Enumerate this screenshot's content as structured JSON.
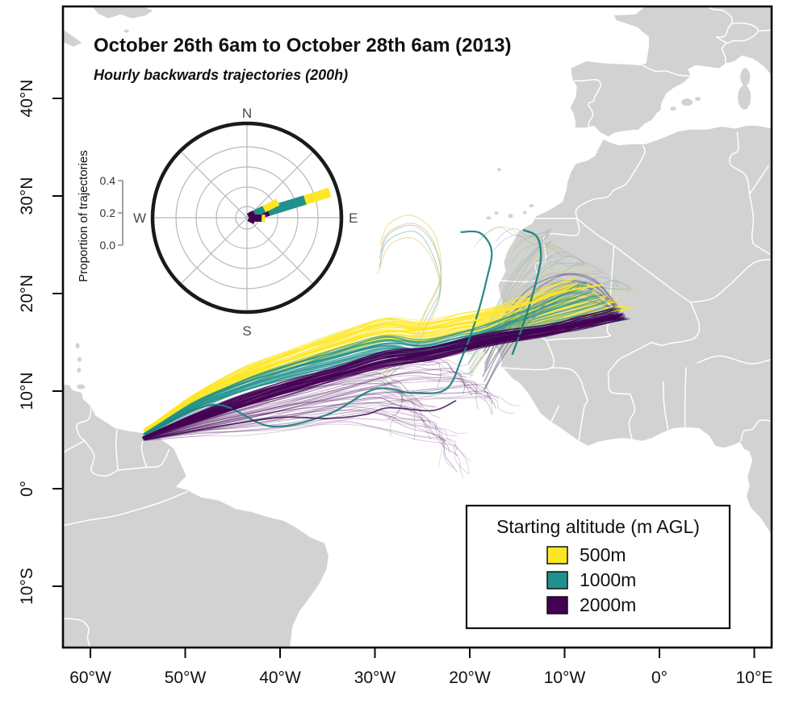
{
  "title": "October 26th 6am to October 28th 6am (2013)",
  "subtitle": "Hourly backwards trajectories (200h)",
  "colors": {
    "land": "#d2d2d2",
    "ocean": "#ffffff",
    "country_border": "#ffffff",
    "frame": "#0a0a0a",
    "alt_500m": "#FDE725",
    "alt_1000m": "#21918C",
    "alt_2000m": "#440154"
  },
  "axes": {
    "lon_ticks": [
      {
        "label": "60°W",
        "lon": -60
      },
      {
        "label": "50°W",
        "lon": -50
      },
      {
        "label": "40°W",
        "lon": -40
      },
      {
        "label": "30°W",
        "lon": -30
      },
      {
        "label": "20°W",
        "lon": -20
      },
      {
        "label": "10°W",
        "lon": -10
      },
      {
        "label": "0°",
        "lon": 0
      },
      {
        "label": "10°E",
        "lon": 10
      }
    ],
    "lat_ticks": [
      {
        "label": "40°N",
        "lat": 40
      },
      {
        "label": "30°N",
        "lat": 30
      },
      {
        "label": "20°N",
        "lat": 20
      },
      {
        "label": "10°N",
        "lat": 10
      },
      {
        "label": "0°",
        "lat": 0
      },
      {
        "label": "10°S",
        "lat": -10
      }
    ]
  },
  "inset": {
    "axis_label": "Proportion of trajectories",
    "compass": {
      "north": "N",
      "east": "E",
      "south": "S",
      "west": "W"
    },
    "scale_ticks": [
      {
        "label": "0.0",
        "value": 0.0
      },
      {
        "label": "0.2",
        "value": 0.2
      },
      {
        "label": "0.4",
        "value": 0.4
      }
    ]
  },
  "legend": {
    "title": "Starting altitude (m AGL)",
    "items": [
      {
        "label": "500m",
        "color": "#FDE725"
      },
      {
        "label": "1000m",
        "color": "#21918C"
      },
      {
        "label": "2000m",
        "color": "#440154"
      }
    ]
  },
  "chart_data": {
    "type": "trajectory_map",
    "map_extent": {
      "lon": [
        -62.9,
        11.9
      ],
      "lat": [
        -16.3,
        49.4
      ]
    },
    "trajectory_origin": {
      "lon": -54.3,
      "lat": 5.4
    },
    "rose": {
      "type": "polar_rose",
      "units": "proportion of trajectories",
      "rlim": [
        0,
        0.4
      ],
      "bins": [
        {
          "dir_deg": 73,
          "thickness": 12,
          "stacks": [
            {
              "altitude": "2000m",
              "color": "#440154",
              "r0": 0.02,
              "r1": 0.13
            },
            {
              "altitude": "1000m",
              "color": "#21918C",
              "r0": 0.13,
              "r1": 0.35
            },
            {
              "altitude": "500m",
              "color": "#FDE725",
              "r0": 0.35,
              "r1": 0.5
            }
          ]
        },
        {
          "dir_deg": 63,
          "thickness": 9,
          "stacks": [
            {
              "altitude": "2000m",
              "color": "#440154",
              "r0": 0.01,
              "r1": 0.05
            },
            {
              "altitude": "1000m",
              "color": "#21918C",
              "r0": 0.05,
              "r1": 0.11
            },
            {
              "altitude": "500m",
              "color": "#FDE725",
              "r0": 0.11,
              "r1": 0.2
            }
          ]
        },
        {
          "dir_deg": 92,
          "thickness": 9,
          "stacks": [
            {
              "altitude": "2000m",
              "color": "#440154",
              "r0": 0.015,
              "r1": 0.085
            },
            {
              "altitude": "500m",
              "color": "#FDE725",
              "r0": 0.085,
              "r1": 0.105
            }
          ]
        },
        {
          "dir_deg": 116,
          "thickness": 7,
          "stacks": [
            {
              "altitude": "2000m",
              "color": "#440154",
              "r0": 0.01,
              "r1": 0.05
            }
          ]
        }
      ]
    },
    "bundles": [
      {
        "name": "faint-purple-south",
        "altitude": "2000m",
        "color": "#440154",
        "count": 30,
        "width": [
          0.7,
          1.1
        ],
        "opacity": [
          0.16,
          0.34
        ],
        "center": [
          [
            -54.3,
            5.05
          ],
          [
            -49,
            6.2
          ],
          [
            -44,
            7.1
          ],
          [
            -39,
            8.0
          ],
          [
            -34,
            8.8
          ],
          [
            -30,
            9.2
          ]
        ],
        "spread": [
          0.12,
          0.7,
          1.4,
          2.0,
          2.4,
          2.6
        ],
        "fan": [
          [
            -22,
            4.8
          ],
          [
            -28.5,
            11.3
          ]
        ],
        "tail": {
          "steps": 4,
          "len": 1.0,
          "angle": -55,
          "jitter": 55
        }
      },
      {
        "name": "faint-purple-mid",
        "altitude": "2000m",
        "color": "#440154",
        "count": 24,
        "width": [
          0.7,
          1.1
        ],
        "opacity": [
          0.2,
          0.4
        ],
        "center": [
          [
            -54.3,
            5.15
          ],
          [
            -48,
            6.6
          ],
          [
            -42,
            7.9
          ],
          [
            -36,
            9.3
          ],
          [
            -30,
            10.7
          ],
          [
            -26,
            11.3
          ]
        ],
        "spread": [
          0.12,
          0.6,
          1.1,
          1.6,
          1.9,
          2.1
        ],
        "fan": [
          [
            -17.5,
            9.5
          ],
          [
            -24,
            13.5
          ]
        ],
        "tail": {
          "steps": 3,
          "len": 0.9,
          "angle": -45,
          "jitter": 50
        }
      },
      {
        "name": "east-risers",
        "altitude": "mixed",
        "count": 18,
        "colors": [
          "#d9d36b",
          "#79b5ac",
          "#93a8bb",
          "#b5aec6",
          "#cdc97e",
          "#8fbfb7"
        ],
        "width": [
          0.8,
          1.2
        ],
        "opacity": [
          0.38,
          0.55
        ],
        "center": [
          [
            -20,
            12.8
          ],
          [
            -18,
            15.8
          ],
          [
            -15.8,
            19.2
          ],
          [
            -13.5,
            22
          ],
          [
            -11.5,
            23.8
          ]
        ],
        "spread": [
          1.3,
          1.8,
          2.3,
          2.8,
          3.2
        ],
        "fan": [
          [
            -2.5,
            20.5
          ],
          [
            -15,
            26.2
          ]
        ],
        "hook": [
          [
            -1.6,
            0.9
          ],
          [
            -3.1,
            0.3
          ],
          [
            -3.9,
            -0.6
          ]
        ]
      },
      {
        "name": "canary-loops",
        "altitude": "mixed",
        "count": 5,
        "colors": [
          "#d9cf5f",
          "#5aa7a0",
          "#8fa8b8",
          "#c9c069"
        ],
        "width": [
          1.0,
          1.3
        ],
        "opacity": [
          0.5,
          0.65
        ],
        "center": [
          [
            -29,
            11.5
          ],
          [
            -26.5,
            14
          ],
          [
            -24.5,
            17.5
          ],
          [
            -23.2,
            21
          ],
          [
            -23.8,
            24.8
          ],
          [
            -26,
            26.8
          ],
          [
            -28.6,
            25.9
          ],
          [
            -29.6,
            23.5
          ]
        ],
        "spread": [
          0.5,
          0.7,
          0.9,
          1.1,
          1.2,
          1.2,
          1.3,
          1.5
        ]
      },
      {
        "name": "gray-arcs",
        "altitude": "2000m",
        "color": "#6b5f78",
        "count": 9,
        "width": [
          1.3,
          1.9
        ],
        "opacity": [
          0.45,
          0.6
        ],
        "center": [
          [
            -18.5,
            12
          ],
          [
            -16.5,
            15.5
          ],
          [
            -13.5,
            18.8
          ],
          [
            -10,
            20.8
          ],
          [
            -7.2,
            20.6
          ],
          [
            -5.2,
            19
          ],
          [
            -4.3,
            18
          ]
        ],
        "spread": [
          1.8,
          1.8,
          1.7,
          1.4,
          1.0,
          0.5,
          0.25
        ]
      },
      {
        "name": "yellow-500m",
        "altitude": "500m",
        "color": "#FDE725",
        "count": 40,
        "width": [
          0.9,
          1.6
        ],
        "opacity": [
          0.45,
          0.8
        ],
        "center": [
          [
            -54.2,
            5.9
          ],
          [
            -49,
            9.3
          ],
          [
            -44,
            11.6
          ],
          [
            -39,
            13.3
          ],
          [
            -34,
            14.9
          ],
          [
            -29,
            16.3
          ],
          [
            -25,
            16.0
          ],
          [
            -21,
            16.8
          ],
          [
            -17.5,
            17.4
          ]
        ],
        "spread": [
          0.12,
          0.45,
          0.75,
          0.9,
          1.05,
          1.15,
          1.05,
          1.0,
          1.1
        ],
        "fan": [
          [
            -2.6,
            18.2
          ],
          [
            -9.5,
            21.8
          ]
        ]
      },
      {
        "name": "teal-1000m",
        "altitude": "1000m",
        "color": "#21918C",
        "count": 34,
        "width": [
          0.9,
          1.6
        ],
        "opacity": [
          0.4,
          0.75
        ],
        "center": [
          [
            -54.2,
            5.6
          ],
          [
            -49,
            8.5
          ],
          [
            -44,
            10.5
          ],
          [
            -39,
            12.1
          ],
          [
            -34,
            13.4
          ],
          [
            -29,
            14.6
          ],
          [
            -25,
            14.2
          ],
          [
            -21,
            15.1
          ],
          [
            -18,
            15.8
          ]
        ],
        "spread": [
          0.12,
          0.4,
          0.65,
          0.8,
          0.9,
          1.0,
          0.95,
          0.9,
          1.0
        ],
        "fan": [
          [
            -3.2,
            17.2
          ],
          [
            -8.5,
            21.3
          ]
        ]
      },
      {
        "name": "purple-2000m",
        "altitude": "2000m",
        "color": "#440154",
        "count": 48,
        "width": [
          0.8,
          1.4
        ],
        "opacity": [
          0.45,
          0.85
        ],
        "center": [
          [
            -54.3,
            5.25
          ],
          [
            -49,
            7.3
          ],
          [
            -44,
            9.0
          ],
          [
            -39,
            10.5
          ],
          [
            -34,
            11.9
          ],
          [
            -29,
            13.3
          ],
          [
            -24,
            13.9
          ],
          [
            -18,
            15.3
          ],
          [
            -12,
            16.2
          ]
        ],
        "spread": [
          0.1,
          0.35,
          0.5,
          0.62,
          0.72,
          0.8,
          0.72,
          0.6,
          0.5
        ],
        "fan": [
          [
            -3.8,
            17.4
          ],
          [
            -4.8,
            18.3
          ]
        ]
      }
    ],
    "highlight_lines": [
      {
        "name": "teal-bold-long",
        "color": "#1d837f",
        "width": 2.2,
        "opacity": 0.95,
        "points": [
          [
            -54.2,
            5.6
          ],
          [
            -47,
            8.6
          ],
          [
            -41,
            6.4
          ],
          [
            -35,
            7.6
          ],
          [
            -30,
            10.2
          ],
          [
            -26,
            9.8
          ],
          [
            -22.5,
            10.2
          ],
          [
            -20.8,
            13.5
          ],
          [
            -19.3,
            17.5
          ],
          [
            -18.2,
            21.5
          ],
          [
            -17.7,
            24.4
          ],
          [
            -18.9,
            26.2
          ],
          [
            -20.9,
            26.3
          ]
        ]
      },
      {
        "name": "teal-bold-riser",
        "color": "#1d837f",
        "width": 2.4,
        "opacity": 0.95,
        "points": [
          [
            -15.5,
            13.8
          ],
          [
            -14.3,
            17
          ],
          [
            -13.2,
            20.5
          ],
          [
            -12.5,
            23.6
          ],
          [
            -12.9,
            25.8
          ],
          [
            -14.3,
            26.5
          ]
        ]
      },
      {
        "name": "purple-bold-rope",
        "color": "#440154",
        "width": 2.6,
        "opacity": 0.95,
        "points": [
          [
            -54.3,
            5.2
          ],
          [
            -46,
            7.8
          ],
          [
            -38,
            10.4
          ],
          [
            -30,
            12.8
          ],
          [
            -22,
            14.3
          ],
          [
            -14,
            15.8
          ],
          [
            -8,
            17.0
          ],
          [
            -4.0,
            17.8
          ]
        ]
      },
      {
        "name": "purple-bold-low",
        "color": "#3a0b4d",
        "width": 1.8,
        "opacity": 0.8,
        "points": [
          [
            -54.3,
            5.0
          ],
          [
            -47,
            6.3
          ],
          [
            -40,
            7.3
          ],
          [
            -35,
            7.2
          ],
          [
            -31,
            7.6
          ],
          [
            -28.5,
            8.3
          ],
          [
            -24,
            8.0
          ],
          [
            -21.5,
            9.0
          ]
        ]
      },
      {
        "name": "yellow-bold-edge",
        "color": "#FDE725",
        "width": 2.2,
        "opacity": 0.95,
        "points": [
          [
            -54.2,
            6.15
          ],
          [
            -48,
            9.9
          ],
          [
            -42,
            12.2
          ],
          [
            -36,
            14.2
          ],
          [
            -30,
            15.9
          ],
          [
            -25,
            16.3
          ],
          [
            -20,
            17.1
          ],
          [
            -15,
            18.6
          ],
          [
            -10,
            20.2
          ],
          [
            -6,
            20.9
          ]
        ]
      }
    ]
  }
}
